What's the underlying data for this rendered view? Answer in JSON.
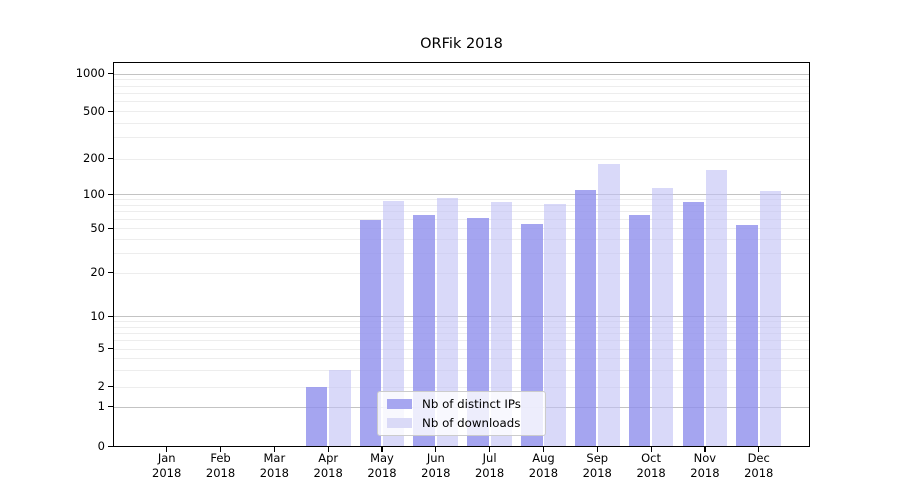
{
  "title": "ORFik 2018",
  "chart_data": {
    "type": "bar",
    "title": "ORFik 2018",
    "months": [
      "Jan",
      "Feb",
      "Mar",
      "Apr",
      "May",
      "Jun",
      "Jul",
      "Aug",
      "Sep",
      "Oct",
      "Nov",
      "Dec"
    ],
    "year": "2018",
    "categories": [
      "Jan 2018",
      "Feb 2018",
      "Mar 2018",
      "Apr 2018",
      "May 2018",
      "Jun 2018",
      "Jul 2018",
      "Aug 2018",
      "Sep 2018",
      "Oct 2018",
      "Nov 2018",
      "Dec 2018"
    ],
    "series": [
      {
        "name": "Nb of distinct IPs",
        "color": "#a6a6f0",
        "values": [
          0,
          0,
          0,
          2,
          60,
          66,
          62,
          55,
          110,
          66,
          86,
          54
        ]
      },
      {
        "name": "Nb of downloads",
        "color": "#dadaf7",
        "values": [
          0,
          0,
          0,
          3,
          88,
          94,
          86,
          83,
          180,
          113,
          162,
          108
        ]
      }
    ],
    "yticks": [
      0,
      1,
      2,
      5,
      10,
      20,
      50,
      100,
      200,
      500,
      1000
    ],
    "ylim": [
      0,
      1000
    ],
    "yscale": "log-like (linear 0-1 segment, logarithmic above)",
    "xlabel": "",
    "ylabel": "",
    "grid": "horizontal major and minor",
    "legend_position": "lower center"
  },
  "colors": {
    "bar_distinct_ips": "#a6a6f0",
    "bar_downloads": "#dadaf7",
    "grid_major": "#c3c3c3",
    "grid_minor": "#ededed",
    "axis": "#000000",
    "background": "#ffffff"
  }
}
